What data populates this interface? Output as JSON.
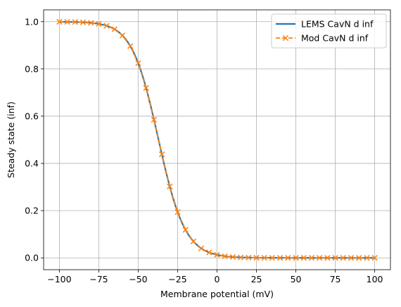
{
  "chart_data": {
    "type": "line",
    "title": "",
    "xlabel": "Membrane potential (mV)",
    "ylabel": "Steady state (inf)",
    "xlim": [
      -110,
      110
    ],
    "ylim": [
      -0.05,
      1.05
    ],
    "xticks": [
      -100,
      -75,
      -50,
      -25,
      0,
      25,
      50,
      75,
      100
    ],
    "yticks": [
      0.0,
      0.2,
      0.4,
      0.6,
      0.8,
      1.0
    ],
    "xtick_labels": [
      "−100",
      "−75",
      "−50",
      "−25",
      "0",
      "25",
      "50",
      "75",
      "100"
    ],
    "ytick_labels": [
      "0.0",
      "0.2",
      "0.4",
      "0.6",
      "0.8",
      "1.0"
    ],
    "grid": true,
    "legend": "top-right",
    "series": [
      {
        "name": "LEMS CavN d inf",
        "color": "#1f77b4",
        "style": "solid",
        "x": [
          -100,
          -98,
          -96,
          -94,
          -92,
          -90,
          -88,
          -86,
          -84,
          -82,
          -80,
          -78,
          -76,
          -74,
          -72,
          -70,
          -68,
          -66,
          -64,
          -62,
          -60,
          -58,
          -56,
          -54,
          -52,
          -50,
          -48,
          -46,
          -44,
          -42,
          -40,
          -38,
          -36,
          -34,
          -32,
          -30,
          -28,
          -26,
          -24,
          -22,
          -20,
          -18,
          -16,
          -14,
          -12,
          -10,
          -8,
          -6,
          -4,
          -2,
          0,
          5,
          10,
          15,
          20,
          25,
          30,
          40,
          50,
          60,
          70,
          80,
          90,
          100
        ],
        "y": [
          0.9995,
          0.9994,
          0.9992,
          0.999,
          0.9988,
          0.9985,
          0.998,
          0.9975,
          0.9968,
          0.996,
          0.9949,
          0.9935,
          0.9917,
          0.9894,
          0.9864,
          0.9826,
          0.9777,
          0.9716,
          0.9638,
          0.954,
          0.9416,
          0.9263,
          0.9075,
          0.8846,
          0.8571,
          0.8245,
          0.7865,
          0.743,
          0.6945,
          0.6414,
          0.5849,
          0.5264,
          0.4674,
          0.4094,
          0.354,
          0.3023,
          0.2552,
          0.2133,
          0.1767,
          0.1452,
          0.1186,
          0.0963,
          0.0778,
          0.0627,
          0.0503,
          0.0403,
          0.0322,
          0.0257,
          0.0205,
          0.0163,
          0.013,
          0.0069,
          0.0036,
          0.0019,
          0.001,
          0.0005,
          0.0003,
          0.0001,
          0.0,
          0.0,
          0.0,
          0.0,
          0.0,
          0.0
        ]
      },
      {
        "name": "Mod CavN d inf",
        "color": "#ff7f0e",
        "style": "dashed",
        "marker": "x",
        "x": [
          -100,
          -95,
          -90,
          -85,
          -80,
          -75,
          -70,
          -65,
          -60,
          -55,
          -50,
          -45,
          -40,
          -35,
          -30,
          -25,
          -20,
          -15,
          -10,
          -5,
          0,
          5,
          10,
          15,
          20,
          25,
          30,
          35,
          40,
          45,
          50,
          55,
          60,
          65,
          70,
          75,
          80,
          85,
          90,
          95,
          100
        ],
        "y": [
          0.9995,
          0.9991,
          0.9985,
          0.9972,
          0.9949,
          0.9906,
          0.9826,
          0.9681,
          0.9416,
          0.8966,
          0.8245,
          0.7194,
          0.5849,
          0.4386,
          0.3023,
          0.1937,
          0.1186,
          0.0698,
          0.0403,
          0.0229,
          0.013,
          0.0069,
          0.0036,
          0.0019,
          0.001,
          0.0005,
          0.0003,
          0.0001,
          0.0001,
          0.0,
          0.0,
          0.0,
          0.0,
          0.0,
          0.0,
          0.0,
          0.0,
          0.0,
          0.0,
          0.0,
          0.0
        ]
      }
    ]
  }
}
